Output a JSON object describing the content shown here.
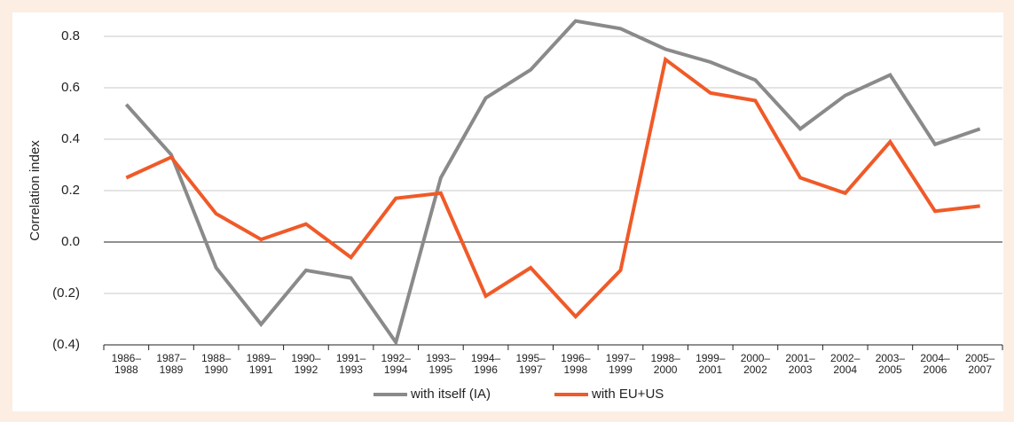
{
  "chart_data": {
    "type": "line",
    "y_label": "Correlation index",
    "categories": [
      "1986–1988",
      "1987–1989",
      "1988–1990",
      "1989–1991",
      "1990–1992",
      "1991–1993",
      "1992–1994",
      "1993–1995",
      "1994–1996",
      "1995–1997",
      "1996–1998",
      "1997–1999",
      "1998–2000",
      "1999–2001",
      "2000–2002",
      "2001–2003",
      "2002–2004",
      "2003–2005",
      "2004–2006",
      "2005–2007"
    ],
    "series": [
      {
        "name": "with itself (IA)",
        "color": "#8a8a8a",
        "values": [
          0.535,
          0.34,
          -0.1,
          -0.32,
          -0.11,
          -0.14,
          -0.39,
          0.25,
          0.56,
          0.67,
          0.86,
          0.83,
          0.75,
          0.7,
          0.63,
          0.44,
          0.57,
          0.65,
          0.38,
          0.44
        ]
      },
      {
        "name": "with EU+US",
        "color": "#f05a28",
        "values": [
          0.25,
          0.33,
          0.11,
          0.01,
          0.07,
          -0.06,
          0.17,
          0.19,
          -0.21,
          -0.1,
          -0.29,
          -0.11,
          0.71,
          0.58,
          0.55,
          0.25,
          0.19,
          0.39,
          0.12,
          0.14
        ]
      }
    ],
    "ylim": [
      -0.4,
      0.8
    ],
    "yticks": [
      {
        "value": -0.4,
        "label": "(0.4)"
      },
      {
        "value": -0.2,
        "label": "(0.2)"
      },
      {
        "value": 0,
        "label": "0.0"
      },
      0.2,
      0.4,
      0.6,
      0.8
    ],
    "grid": true,
    "legend": "bottom"
  }
}
